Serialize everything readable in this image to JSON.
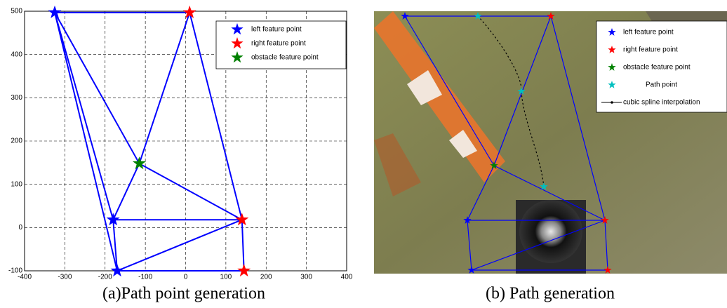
{
  "chart_data": {
    "type": "scatter",
    "caption": "(a)Path point generation",
    "xlim": [
      -400,
      400
    ],
    "ylim": [
      -100,
      500
    ],
    "xticks": [
      -400,
      -300,
      -200,
      -100,
      0,
      100,
      200,
      300,
      400
    ],
    "yticks": [
      -100,
      0,
      100,
      200,
      300,
      400,
      500
    ],
    "grid": true,
    "legend": "upper right",
    "series": [
      {
        "name": "left feature point",
        "color": "#0000ff",
        "x": [
          -325,
          -180,
          -170
        ],
        "y": [
          497,
          18,
          -100
        ]
      },
      {
        "name": "right feature point",
        "color": "#ff0000",
        "x": [
          10,
          140,
          145
        ],
        "y": [
          497,
          18,
          -100
        ]
      },
      {
        "name": "obstacle feature point",
        "color": "#008000",
        "x": [
          -115
        ],
        "y": [
          148
        ]
      }
    ],
    "edge_color": "#0000ff",
    "edges": [
      {
        "x": [
          -325,
          10
        ],
        "y": [
          497,
          497
        ]
      },
      {
        "x": [
          -325,
          -180
        ],
        "y": [
          497,
          18
        ]
      },
      {
        "x": [
          -325,
          -170
        ],
        "y": [
          497,
          -100
        ]
      },
      {
        "x": [
          -325,
          -115
        ],
        "y": [
          497,
          148
        ]
      },
      {
        "x": [
          10,
          -115
        ],
        "y": [
          497,
          148
        ]
      },
      {
        "x": [
          10,
          140
        ],
        "y": [
          497,
          18
        ]
      },
      {
        "x": [
          -115,
          140
        ],
        "y": [
          148,
          18
        ]
      },
      {
        "x": [
          -115,
          -180
        ],
        "y": [
          148,
          18
        ]
      },
      {
        "x": [
          -180,
          140
        ],
        "y": [
          18,
          18
        ]
      },
      {
        "x": [
          -180,
          -170
        ],
        "y": [
          18,
          -100
        ]
      },
      {
        "x": [
          -170,
          140
        ],
        "y": [
          -100,
          18
        ]
      },
      {
        "x": [
          -170,
          145
        ],
        "y": [
          -100,
          -100
        ]
      },
      {
        "x": [
          140,
          145
        ],
        "y": [
          18,
          -100
        ]
      }
    ]
  },
  "photo_panel": {
    "caption": "(b) Path generation",
    "legend": [
      "left feature point",
      "right feature point",
      "obstacle feature point",
      "Path point",
      "cubic spline interpolation"
    ]
  }
}
